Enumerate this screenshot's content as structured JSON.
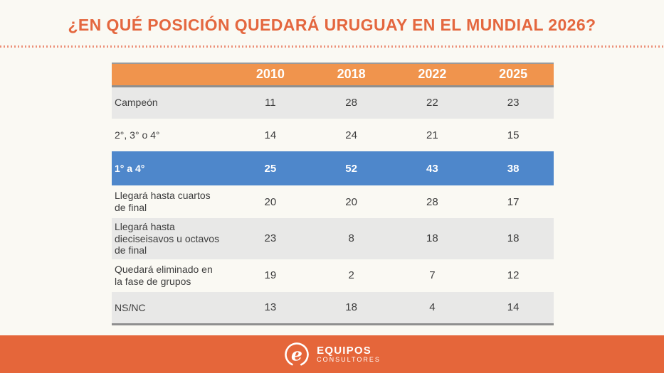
{
  "title": "¿EN QUÉ POSICIÓN QUEDARÁ URUGUAY EN EL MUNDIAL 2026?",
  "table": {
    "columns": [
      "2010",
      "2018",
      "2022",
      "2025"
    ],
    "rows": [
      {
        "label": "Campeón",
        "values": [
          "11",
          "28",
          "22",
          "23"
        ],
        "style": "gray"
      },
      {
        "label": "2°, 3° o 4°",
        "values": [
          "14",
          "24",
          "21",
          "15"
        ],
        "style": "plain"
      },
      {
        "label": "1° a 4°",
        "values": [
          "25",
          "52",
          "43",
          "38"
        ],
        "style": "highlight"
      },
      {
        "label": "Llegará hasta cuartos de final",
        "values": [
          "20",
          "20",
          "28",
          "17"
        ],
        "style": "plain"
      },
      {
        "label": "Llegará hasta dieciseisavos u octavos de final",
        "values": [
          "23",
          "8",
          "18",
          "18"
        ],
        "style": "gray"
      },
      {
        "label": "Quedará eliminado en la fase de grupos",
        "values": [
          "19",
          "2",
          "7",
          "12"
        ],
        "style": "plain"
      },
      {
        "label": "NS/NC",
        "values": [
          "13",
          "18",
          "4",
          "14"
        ],
        "style": "gray"
      }
    ]
  },
  "footer": {
    "brand_name": "EQUIPOS",
    "brand_subtitle": "CONSULTORES"
  },
  "colors": {
    "title_orange": "#E4673F",
    "header_orange": "#F0944D",
    "highlight_blue": "#4E87CB",
    "gray_row": "#E8E8E7",
    "footer_orange": "#E5663A",
    "border_gray": "#8F8F8F",
    "background": "#FAF9F3"
  },
  "chart_data": {
    "type": "table",
    "title": "¿EN QUÉ POSICIÓN QUEDARÁ URUGUAY EN EL MUNDIAL 2026?",
    "categories": [
      "2010",
      "2018",
      "2022",
      "2025"
    ],
    "series": [
      {
        "name": "Campeón",
        "values": [
          11,
          28,
          22,
          23
        ]
      },
      {
        "name": "2°, 3° o 4°",
        "values": [
          14,
          24,
          21,
          15
        ]
      },
      {
        "name": "1° a 4°",
        "values": [
          25,
          52,
          43,
          38
        ]
      },
      {
        "name": "Llegará hasta cuartos de final",
        "values": [
          20,
          20,
          28,
          17
        ]
      },
      {
        "name": "Llegará hasta dieciseisavos u octavos de final",
        "values": [
          23,
          8,
          18,
          18
        ]
      },
      {
        "name": "Quedará eliminado en la fase de grupos",
        "values": [
          19,
          2,
          7,
          12
        ]
      },
      {
        "name": "NS/NC",
        "values": [
          13,
          18,
          4,
          14
        ]
      }
    ],
    "highlighted_series": "1° a 4°",
    "legend_position": "none",
    "grid": false
  }
}
